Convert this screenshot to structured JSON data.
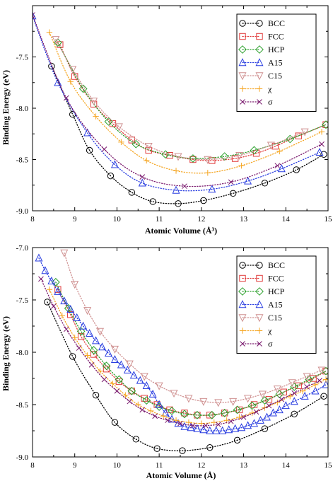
{
  "chart_data": [
    {
      "type": "scatter",
      "title": "",
      "xlabel": "Atomic Volume (Å³)",
      "ylabel": "Binding Energy (eV)",
      "xlim": [
        8,
        15
      ],
      "ylim": [
        -9.0,
        -7.0
      ],
      "xticks": [
        8,
        9,
        10,
        11,
        12,
        13,
        14,
        15
      ],
      "yticks": [
        -9.0,
        -8.5,
        -8.0,
        -7.5,
        -7.0
      ],
      "xtick_labels": [
        "8",
        "9",
        "10",
        "11",
        "12",
        "13",
        "14",
        "15"
      ],
      "ytick_labels": [
        "-9.0",
        "-8.5",
        "-8.0",
        "-7.5",
        ""
      ],
      "grid": false,
      "legend_position": "top-right",
      "series": [
        {
          "name": "BCC",
          "color": "#000000",
          "marker": "circle",
          "x": [
            8.45,
            8.95,
            9.35,
            9.85,
            10.35,
            10.85,
            11.45,
            12.05,
            12.75,
            13.5,
            14.25,
            14.9
          ],
          "y": [
            -7.59,
            -8.06,
            -8.41,
            -8.66,
            -8.82,
            -8.91,
            -8.93,
            -8.9,
            -8.83,
            -8.73,
            -8.6,
            -8.45
          ]
        },
        {
          "name": "FCC",
          "color": "#e03c3c",
          "marker": "square",
          "x": [
            8.65,
            9.0,
            9.45,
            9.9,
            10.35,
            10.75,
            11.25,
            11.8,
            12.25,
            12.8,
            13.3,
            13.75,
            14.3,
            14.95
          ],
          "y": [
            -7.38,
            -7.69,
            -7.96,
            -8.15,
            -8.31,
            -8.41,
            -8.46,
            -8.5,
            -8.51,
            -8.49,
            -8.44,
            -8.37,
            -8.27,
            -8.16
          ]
        },
        {
          "name": "HCP",
          "color": "#2ca02c",
          "marker": "diamond",
          "x": [
            8.6,
            9.2,
            9.8,
            10.45,
            11.15,
            11.8,
            12.55,
            13.25,
            14.1,
            14.95
          ],
          "y": [
            -7.36,
            -7.81,
            -8.13,
            -8.35,
            -8.45,
            -8.49,
            -8.47,
            -8.41,
            -8.3,
            -8.16
          ]
        },
        {
          "name": "A15",
          "color": "#2a3ee0",
          "marker": "triangle-up",
          "x": [
            8.0,
            8.6,
            9.3,
            9.95,
            10.6,
            11.4,
            12.25,
            13.1,
            13.9,
            14.8
          ],
          "y": [
            -7.1,
            -7.75,
            -8.24,
            -8.55,
            -8.73,
            -8.8,
            -8.79,
            -8.71,
            -8.59,
            -8.43
          ]
        },
        {
          "name": "C15",
          "color": "#cf9090",
          "marker": "triangle-down",
          "x": [
            8.55,
            8.95,
            9.45,
            10.05,
            10.75,
            11.45,
            12.15,
            12.9,
            13.65,
            14.45
          ],
          "y": [
            -7.33,
            -7.62,
            -7.93,
            -8.18,
            -8.37,
            -8.47,
            -8.5,
            -8.46,
            -8.36,
            -8.23
          ]
        },
        {
          "name": "χ",
          "color": "#f5a623",
          "marker": "plus",
          "x": [
            8.4,
            8.9,
            9.5,
            10.1,
            10.7,
            11.4,
            12.15,
            12.95,
            13.85,
            14.85
          ],
          "y": [
            -7.26,
            -7.74,
            -8.08,
            -8.33,
            -8.51,
            -8.61,
            -8.63,
            -8.56,
            -8.42,
            -8.23
          ]
        },
        {
          "name": "σ",
          "color": "#7a1a6e",
          "marker": "x",
          "x": [
            8.0,
            8.8,
            9.7,
            10.6,
            11.6,
            12.7,
            13.8,
            14.85
          ],
          "y": [
            -7.09,
            -7.9,
            -8.4,
            -8.67,
            -8.76,
            -8.72,
            -8.56,
            -8.35
          ]
        }
      ]
    },
    {
      "type": "scatter",
      "title": "",
      "xlabel": "Atomic Volume (Å)",
      "ylabel": "Binding Energy (eV)",
      "xlim": [
        8,
        15
      ],
      "ylim": [
        -9.0,
        -7.0
      ],
      "xticks": [
        8,
        9,
        10,
        11,
        12,
        13,
        14,
        15
      ],
      "yticks": [
        -9.0,
        -8.5,
        -8.0,
        -7.5,
        -7.0
      ],
      "xtick_labels": [
        "8",
        "9",
        "10",
        "11",
        "12",
        "13",
        "14",
        "15"
      ],
      "ytick_labels": [
        "-9.0",
        "-8.5",
        "-8.0",
        "-7.5",
        "-7.0"
      ],
      "grid": false,
      "legend_position": "top-right",
      "series": [
        {
          "name": "BCC",
          "color": "#000000",
          "marker": "circle",
          "x": [
            8.35,
            8.95,
            9.5,
            9.95,
            10.45,
            10.95,
            11.55,
            12.2,
            12.85,
            13.5,
            14.2,
            14.9
          ],
          "y": [
            -7.52,
            -8.04,
            -8.41,
            -8.67,
            -8.83,
            -8.92,
            -8.94,
            -8.91,
            -8.84,
            -8.73,
            -8.59,
            -8.42
          ]
        },
        {
          "name": "FCC",
          "color": "#e03c3c",
          "marker": "square",
          "x": [
            8.6,
            8.9,
            9.15,
            9.45,
            9.75,
            10.05,
            10.35,
            10.65,
            10.95,
            11.25,
            11.6,
            11.9,
            12.2,
            12.55,
            12.9,
            13.25,
            13.6,
            13.95,
            14.3,
            14.65,
            14.95
          ],
          "y": [
            -7.4,
            -7.64,
            -7.85,
            -8.02,
            -8.16,
            -8.28,
            -8.37,
            -8.44,
            -8.5,
            -8.55,
            -8.58,
            -8.6,
            -8.6,
            -8.58,
            -8.55,
            -8.5,
            -8.45,
            -8.38,
            -8.32,
            -8.25,
            -8.18
          ]
        },
        {
          "name": "HCP",
          "color": "#2ca02c",
          "marker": "diamond",
          "x": [
            8.55,
            8.85,
            9.15,
            9.45,
            9.75,
            10.05,
            10.35,
            10.7,
            11.0,
            11.3,
            11.6,
            11.9,
            12.25,
            12.55,
            12.85,
            13.2,
            13.5,
            13.85,
            14.2,
            14.55,
            14.95
          ],
          "y": [
            -7.33,
            -7.58,
            -7.8,
            -7.98,
            -8.13,
            -8.26,
            -8.37,
            -8.46,
            -8.52,
            -8.56,
            -8.59,
            -8.6,
            -8.6,
            -8.58,
            -8.55,
            -8.51,
            -8.46,
            -8.4,
            -8.33,
            -8.26,
            -8.18
          ]
        },
        {
          "name": "A15",
          "color": "#2a3ee0",
          "marker": "triangle-up",
          "x": [
            8.15,
            8.3,
            8.45,
            8.6,
            8.75,
            8.9,
            9.05,
            9.2,
            9.35,
            9.5,
            9.65,
            9.8,
            9.95,
            10.1,
            10.25,
            10.4,
            10.55,
            10.7,
            10.85,
            11.0,
            11.15,
            11.3,
            11.45,
            11.6,
            11.75,
            11.9,
            12.05,
            12.2,
            12.35,
            12.5,
            12.65,
            12.8,
            12.95,
            13.1,
            13.25,
            13.4,
            13.55,
            13.7,
            13.85,
            14.0,
            14.2,
            14.45,
            14.7,
            14.95
          ],
          "y": [
            -7.1,
            -7.22,
            -7.32,
            -7.42,
            -7.51,
            -7.59,
            -7.67,
            -7.75,
            -7.82,
            -7.89,
            -7.95,
            -8.01,
            -8.07,
            -8.12,
            -8.17,
            -8.22,
            -8.27,
            -8.32,
            -8.4,
            -8.5,
            -8.58,
            -8.64,
            -8.68,
            -8.71,
            -8.72,
            -8.73,
            -8.74,
            -8.75,
            -8.75,
            -8.75,
            -8.74,
            -8.73,
            -8.72,
            -8.7,
            -8.68,
            -8.65,
            -8.62,
            -8.58,
            -8.55,
            -8.51,
            -8.47,
            -8.42,
            -8.37,
            -8.31
          ]
        },
        {
          "name": "C15",
          "color": "#cf9090",
          "marker": "triangle-down",
          "x": [
            8.75,
            9.0,
            9.3,
            9.6,
            9.95,
            10.3,
            10.65,
            11.0,
            11.35,
            11.7,
            12.05,
            12.4,
            12.75,
            13.1,
            13.45,
            13.8,
            14.15,
            14.5,
            14.85
          ],
          "y": [
            -7.05,
            -7.35,
            -7.6,
            -7.8,
            -7.97,
            -8.11,
            -8.23,
            -8.32,
            -8.39,
            -8.44,
            -8.47,
            -8.48,
            -8.47,
            -8.44,
            -8.4,
            -8.35,
            -8.29,
            -8.23,
            -8.17
          ]
        },
        {
          "name": "χ",
          "color": "#f5a623",
          "marker": "plus",
          "x": [
            8.4,
            8.7,
            9.0,
            9.3,
            9.6,
            9.9,
            10.2,
            10.5,
            10.8,
            11.1,
            11.4,
            11.7,
            12.0,
            12.3,
            12.6,
            12.9,
            13.2,
            13.5,
            13.8,
            14.1,
            14.4,
            14.7,
            14.95
          ],
          "y": [
            -7.4,
            -7.65,
            -7.86,
            -8.03,
            -8.18,
            -8.3,
            -8.41,
            -8.5,
            -8.56,
            -8.61,
            -8.65,
            -8.67,
            -8.68,
            -8.67,
            -8.65,
            -8.62,
            -8.58,
            -8.53,
            -8.48,
            -8.42,
            -8.37,
            -8.31,
            -8.26
          ]
        },
        {
          "name": "σ",
          "color": "#7a1a6e",
          "marker": "x",
          "x": [
            8.2,
            8.5,
            8.8,
            9.1,
            9.4,
            9.7,
            10.0,
            10.3,
            10.6,
            10.9,
            11.2,
            11.5,
            11.8,
            12.1,
            12.4,
            12.7,
            13.0,
            13.3,
            13.6,
            13.9,
            14.2,
            14.5,
            14.8
          ],
          "y": [
            -7.3,
            -7.56,
            -7.78,
            -7.96,
            -8.12,
            -8.26,
            -8.37,
            -8.47,
            -8.55,
            -8.61,
            -8.65,
            -8.68,
            -8.7,
            -8.7,
            -8.69,
            -8.66,
            -8.62,
            -8.57,
            -8.51,
            -8.45,
            -8.39,
            -8.33,
            -8.27
          ]
        }
      ]
    }
  ]
}
